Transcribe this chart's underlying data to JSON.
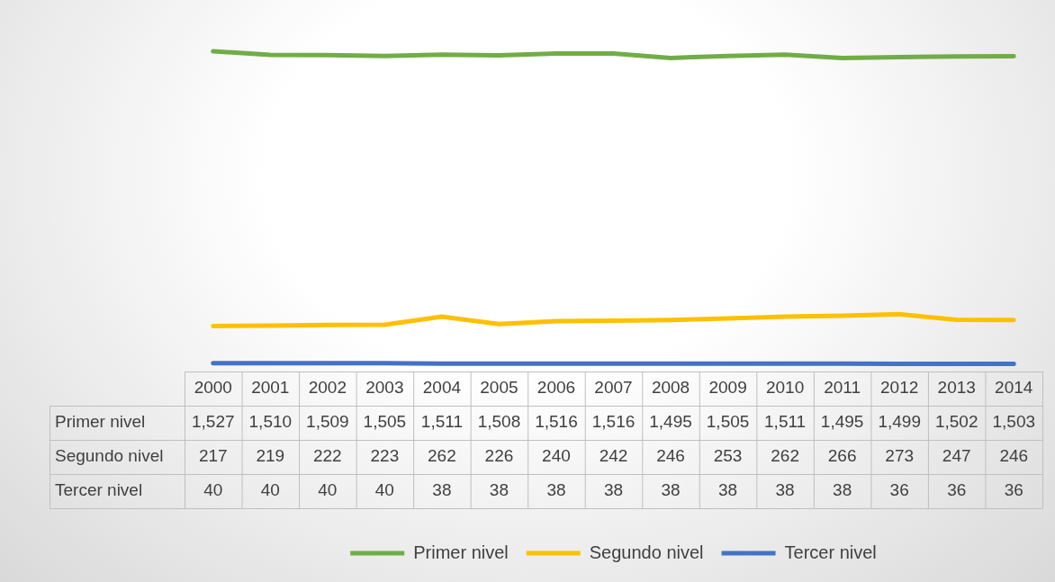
{
  "chart_data": {
    "type": "line",
    "categories": [
      "2000",
      "2001",
      "2002",
      "2003",
      "2004",
      "2005",
      "2006",
      "2007",
      "2008",
      "2009",
      "2010",
      "2011",
      "2012",
      "2013",
      "2014"
    ],
    "series": [
      {
        "name": "Primer nivel",
        "color": "#70ad47",
        "values": [
          1527,
          1510,
          1509,
          1505,
          1511,
          1508,
          1516,
          1516,
          1495,
          1505,
          1511,
          1495,
          1499,
          1502,
          1503
        ],
        "value_labels": [
          "1,527",
          "1,510",
          "1,509",
          "1,505",
          "1,511",
          "1,508",
          "1,516",
          "1,516",
          "1,495",
          "1,505",
          "1,511",
          "1,495",
          "1,499",
          "1,502",
          "1,503"
        ]
      },
      {
        "name": "Segundo nivel",
        "color": "#ffc000",
        "values": [
          217,
          219,
          222,
          223,
          262,
          226,
          240,
          242,
          246,
          253,
          262,
          266,
          273,
          247,
          246
        ],
        "value_labels": [
          "217",
          "219",
          "222",
          "223",
          "262",
          "226",
          "240",
          "242",
          "246",
          "253",
          "262",
          "266",
          "273",
          "247",
          "246"
        ]
      },
      {
        "name": "Tercer nivel",
        "color": "#4472c4",
        "values": [
          40,
          40,
          40,
          40,
          38,
          38,
          38,
          38,
          38,
          38,
          38,
          38,
          36,
          36,
          36
        ],
        "value_labels": [
          "40",
          "40",
          "40",
          "40",
          "38",
          "38",
          "38",
          "38",
          "38",
          "38",
          "38",
          "38",
          "36",
          "36",
          "36"
        ]
      }
    ],
    "legend": "bottom",
    "marker": "none"
  }
}
